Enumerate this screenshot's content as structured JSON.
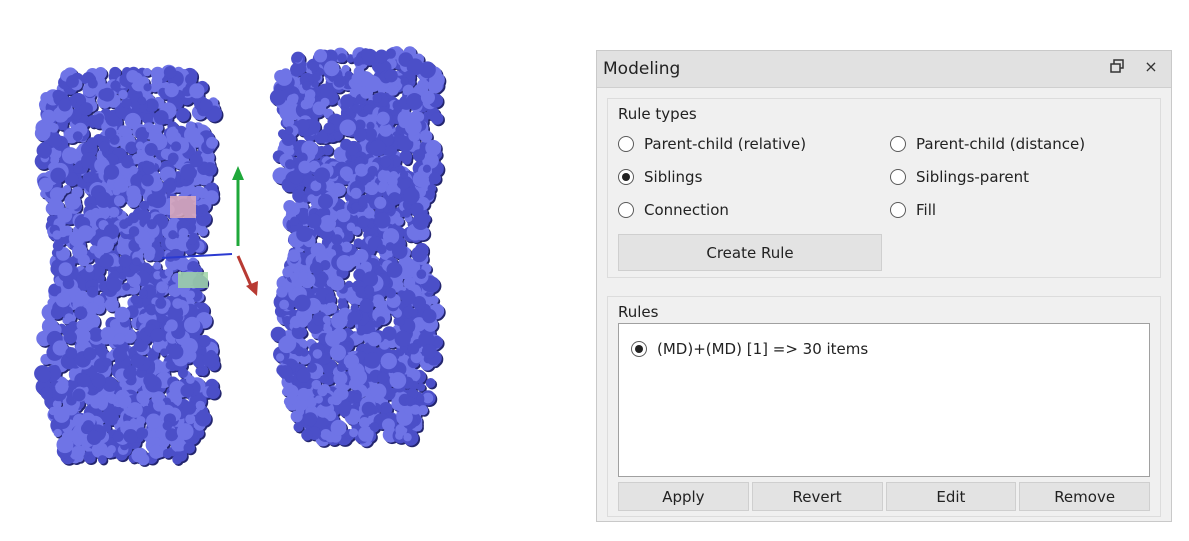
{
  "colors": {
    "molecule": "#4b4fc8",
    "molecule_shadow": "#23256e",
    "molecule_highlight": "#6f74e6",
    "axis_y": "#1fa83a",
    "axis_x": "#b83a33",
    "axis_z": "#2b3ad1"
  },
  "viewport": {
    "objects": [
      "left-protein-structure",
      "right-protein-structure"
    ],
    "gizmo": [
      "y-axis-arrow",
      "x-axis-arrow",
      "z-axis-arrow"
    ]
  },
  "panel": {
    "title": "Modeling",
    "float_icon": "float-icon",
    "close_icon": "close-icon",
    "close_glyph": "×"
  },
  "rule_types": {
    "title": "Rule types",
    "options": [
      {
        "label": "Parent-child (relative)",
        "checked": false
      },
      {
        "label": "Parent-child (distance)",
        "checked": false
      },
      {
        "label": "Siblings",
        "checked": true
      },
      {
        "label": "Siblings-parent",
        "checked": false
      },
      {
        "label": "Connection",
        "checked": false
      },
      {
        "label": "Fill",
        "checked": false
      }
    ],
    "create_button": "Create Rule"
  },
  "rules": {
    "title": "Rules",
    "items": [
      {
        "label": "(MD)+(MD) [1] => 30 items",
        "checked": true
      }
    ],
    "buttons": {
      "apply": "Apply",
      "revert": "Revert",
      "edit": "Edit",
      "remove": "Remove"
    }
  }
}
